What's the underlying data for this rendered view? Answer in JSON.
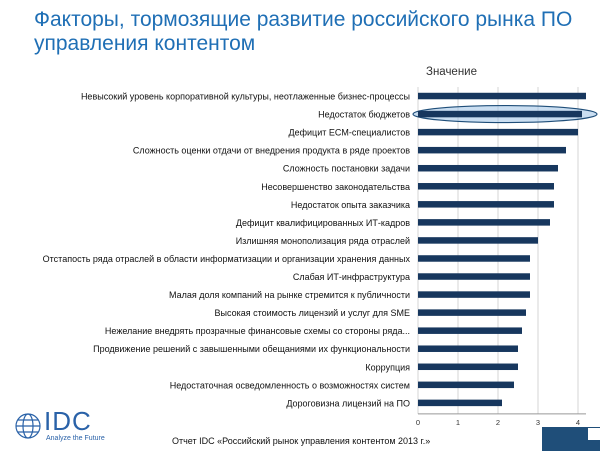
{
  "title": "Факторы, тормозящие развитие российского рынка ПО управления контентом",
  "series_label": "Значение",
  "footer": {
    "source": "Отчет IDC «Российский рынок управления контентом 2013 г.»",
    "logo_text": "IDC",
    "logo_tagline": "Analyze the Future"
  },
  "colors": {
    "title": "#1f6fb5",
    "bar": "#17375e",
    "highlight_fill": "#9ec3e6",
    "highlight_stroke": "#1f4e79",
    "footer_bar": "#1f4e79"
  },
  "chart_data": {
    "type": "bar",
    "orientation": "horizontal",
    "categories": [
      "Невысокий уровень корпоративной культуры, неотлаженные бизнес-процессы",
      "Недостаток бюджетов",
      "Дефицит ECM-специалистов",
      "Сложность оценки отдачи от внедрения продукта в ряде проектов",
      "Сложность постановки задачи",
      "Несовершенство законодательства",
      "Недостаток опыта заказчика",
      "Дефицит квалифицированных ИТ-кадров",
      "Излишняя монополизация ряда отраслей",
      "Отстапость ряда отраслей в области информатизации и организации хранения данных",
      "Слабая ИТ-инфраструктура",
      "Малая доля компаний на рынке стремится к публичности",
      "Высокая стоимость лицензий и услуг для SME",
      "Нежелание внедрять прозрачные финансовые схемы со стороны ряда...",
      "Продвижение решений с завышенными обещаниями их функциональности",
      "Коррупция",
      "Недостаточная осведомленность о возможностях систем",
      "Дороговизна лицензий на ПО"
    ],
    "values": [
      4.2,
      4.1,
      4.0,
      3.7,
      3.5,
      3.4,
      3.4,
      3.3,
      3.0,
      2.8,
      2.8,
      2.8,
      2.7,
      2.6,
      2.5,
      2.5,
      2.4,
      2.1
    ],
    "highlighted_category": "Недостаток бюджетов",
    "xlim": [
      0,
      4.2
    ],
    "xticks": [
      "0",
      "1",
      "2",
      "3",
      "4"
    ],
    "xlabel": "",
    "ylabel": "",
    "grid": true
  }
}
